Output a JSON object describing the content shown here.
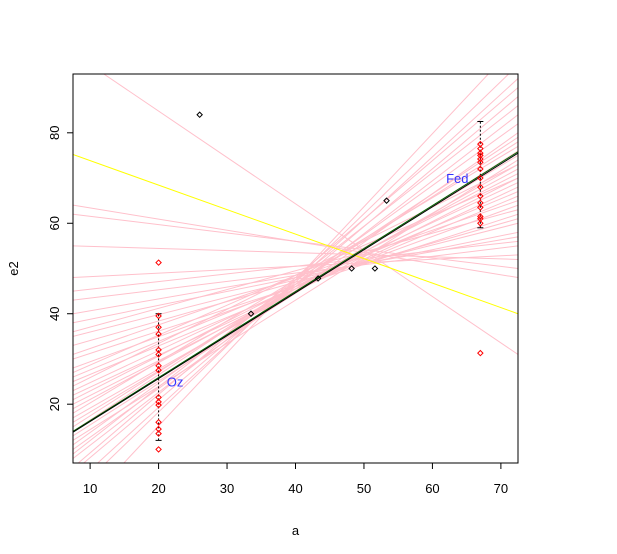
{
  "chart_data": {
    "type": "scatter",
    "title": "",
    "xlabel": "a",
    "ylabel": "e2",
    "xlim": [
      7.5,
      72.5
    ],
    "ylim": [
      7,
      93
    ],
    "x_ticks": [
      10,
      20,
      30,
      40,
      50,
      60,
      70
    ],
    "y_ticks": [
      20,
      40,
      60,
      80
    ],
    "grid": false,
    "colors": {
      "frame": "#000000",
      "black_points": "#000000",
      "red_points": "#ff0000",
      "sample_lines": "#ffc0cb",
      "fit_line": "#000000",
      "green_line": "#006400",
      "yellow_line": "#ffff00",
      "annotation": "#3333ff",
      "error_bars": "#000000"
    },
    "black_points": [
      {
        "x": 26,
        "y": 84
      },
      {
        "x": 33.5,
        "y": 40
      },
      {
        "x": 43.3,
        "y": 47.8
      },
      {
        "x": 48.2,
        "y": 50
      },
      {
        "x": 51.6,
        "y": 50
      },
      {
        "x": 53.3,
        "y": 65
      }
    ],
    "red_points": [
      {
        "x": 20,
        "y": 51.3
      },
      {
        "x": 20,
        "y": 39.5
      },
      {
        "x": 20,
        "y": 37
      },
      {
        "x": 20,
        "y": 35.5
      },
      {
        "x": 20,
        "y": 32
      },
      {
        "x": 20,
        "y": 31
      },
      {
        "x": 20,
        "y": 28.5
      },
      {
        "x": 20,
        "y": 27.5
      },
      {
        "x": 20,
        "y": 21.5
      },
      {
        "x": 20,
        "y": 20.5
      },
      {
        "x": 20,
        "y": 19.8
      },
      {
        "x": 20,
        "y": 16
      },
      {
        "x": 20,
        "y": 14.5
      },
      {
        "x": 20,
        "y": 13.5
      },
      {
        "x": 20,
        "y": 10
      },
      {
        "x": 67,
        "y": 77.5
      },
      {
        "x": 67,
        "y": 76.5
      },
      {
        "x": 67,
        "y": 75.5
      },
      {
        "x": 67,
        "y": 75
      },
      {
        "x": 67,
        "y": 74.2
      },
      {
        "x": 67,
        "y": 73.5
      },
      {
        "x": 67,
        "y": 72
      },
      {
        "x": 67,
        "y": 70
      },
      {
        "x": 67,
        "y": 68
      },
      {
        "x": 67,
        "y": 66
      },
      {
        "x": 67,
        "y": 64.5
      },
      {
        "x": 67,
        "y": 63.5
      },
      {
        "x": 67,
        "y": 61.5
      },
      {
        "x": 67,
        "y": 61
      },
      {
        "x": 67,
        "y": 60
      },
      {
        "x": 67,
        "y": 31.3
      }
    ],
    "error_bars": [
      {
        "x": 20,
        "y_low": 12,
        "y_high": 40
      },
      {
        "x": 67,
        "y_low": 59,
        "y_high": 82.5
      }
    ],
    "fit_line": {
      "x1": 7.5,
      "y1": 13.8,
      "x2": 72.5,
      "y2": 75.5
    },
    "green_line": {
      "x1": 7.5,
      "y1": 14,
      "x2": 72.5,
      "y2": 75.8
    },
    "yellow_line": {
      "x1": 7.5,
      "y1": 75.2,
      "x2": 72.5,
      "y2": 40
    },
    "sample_lines": [
      [
        7.5,
        13,
        72.5,
        76
      ],
      [
        7.5,
        17,
        72.5,
        73
      ],
      [
        7.5,
        10,
        72.5,
        80
      ],
      [
        7.5,
        20,
        72.5,
        70
      ],
      [
        7.5,
        15,
        72.5,
        78
      ],
      [
        7.5,
        22,
        72.5,
        68
      ],
      [
        7.5,
        8,
        72.5,
        84
      ],
      [
        7.5,
        25,
        72.5,
        66
      ],
      [
        7.5,
        12,
        72.5,
        74
      ],
      [
        7.5,
        18,
        72.5,
        77
      ],
      [
        7.5,
        28,
        72.5,
        64
      ],
      [
        7.5,
        30,
        72.5,
        62
      ],
      [
        7.5,
        5,
        72.5,
        88
      ],
      [
        7.5,
        2,
        72.5,
        92
      ],
      [
        7.5,
        33,
        72.5,
        61
      ],
      [
        7.5,
        35,
        72.5,
        60
      ],
      [
        7.5,
        38,
        72.5,
        58
      ],
      [
        7.5,
        40,
        72.5,
        57
      ],
      [
        7.5,
        43,
        72.5,
        55
      ],
      [
        7.5,
        48,
        72.5,
        53
      ],
      [
        7.5,
        55,
        72.5,
        52
      ],
      [
        7.5,
        62,
        72.5,
        50
      ],
      [
        7.5,
        64,
        72.5,
        48
      ],
      [
        7.5,
        0,
        72.5,
        95
      ],
      [
        7.5,
        -5,
        72.5,
        100
      ],
      [
        7.5,
        11,
        72.5,
        82
      ],
      [
        7.5,
        14,
        72.5,
        79
      ],
      [
        7.5,
        16,
        72.5,
        75
      ],
      [
        7.5,
        19,
        72.5,
        72
      ],
      [
        7.5,
        21,
        72.5,
        71
      ],
      [
        7.5,
        23,
        72.5,
        69
      ],
      [
        7.5,
        24,
        72.5,
        73
      ],
      [
        7.5,
        26,
        72.5,
        67
      ],
      [
        7.5,
        27,
        72.5,
        70
      ],
      [
        7.5,
        9,
        72.5,
        86
      ],
      [
        7.5,
        6,
        72.5,
        90
      ],
      [
        7.5,
        31,
        72.5,
        65
      ],
      [
        7.5,
        36,
        72.5,
        63
      ],
      [
        12,
        93,
        72.5,
        31
      ],
      [
        7.5,
        45,
        72.5,
        56
      ]
    ],
    "annotations": [
      {
        "text": "Oz",
        "x": 21.2,
        "y": 25
      },
      {
        "text": "Fed",
        "x": 62,
        "y": 70
      }
    ]
  }
}
